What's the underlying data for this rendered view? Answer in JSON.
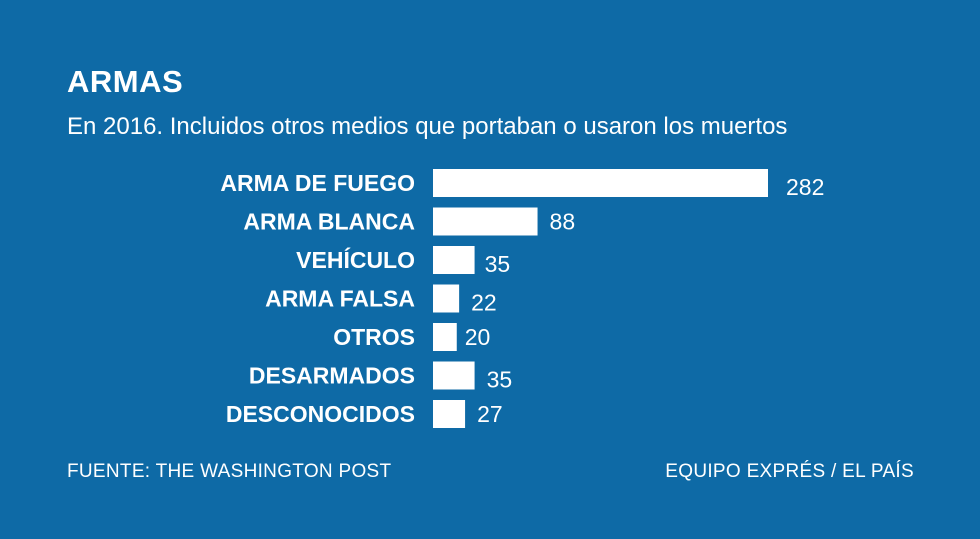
{
  "header": {
    "title": "ARMAS",
    "subtitle": "En 2016. Incluidos otros medios que portaban o usaron los muertos"
  },
  "footer": {
    "source": "FUENTE: THE WASHINGTON POST",
    "credit": "EQUIPO EXPRÉS / EL PAÍS"
  },
  "colors": {
    "background": "#0e6aa6",
    "bar": "#ffffff",
    "text": "#ffffff"
  },
  "chart_data": {
    "type": "bar",
    "orientation": "horizontal",
    "title": "ARMAS",
    "subtitle": "En 2016. Incluidos otros medios que portaban o usaron los muertos",
    "categories": [
      "ARMA DE FUEGO",
      "ARMA BLANCA",
      "VEHÍCULO",
      "ARMA FALSA",
      "OTROS",
      "DESARMADOS",
      "DESCONOCIDOS"
    ],
    "values": [
      282,
      88,
      35,
      22,
      20,
      35,
      27
    ],
    "xlabel": "",
    "ylabel": "",
    "xlim": [
      0,
      282
    ],
    "grid": false,
    "data_labels": true
  }
}
